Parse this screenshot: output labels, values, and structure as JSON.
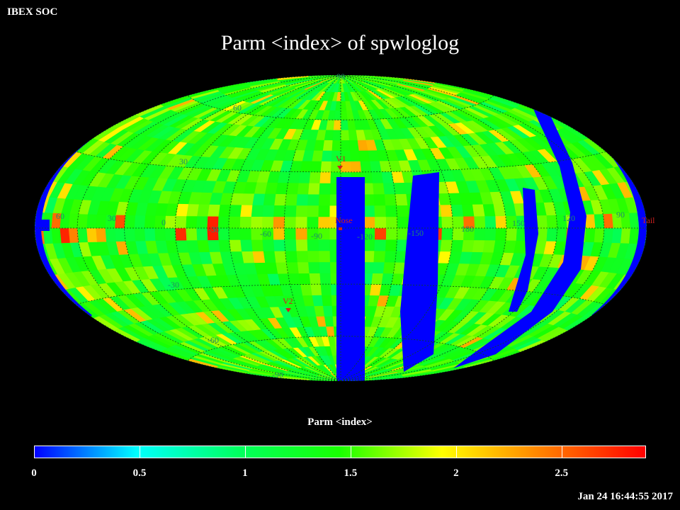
{
  "header": {
    "corner_label": "IBEX SOC",
    "title": "Parm  <index> of spwloglog"
  },
  "map": {
    "projection": "Hammer-Aitoff (ecliptic, all-sky)",
    "gridline_color": "#0a4a18",
    "lon_labels": [
      "60",
      "30",
      "0",
      "-30",
      "-60",
      "-90",
      "-120",
      "-150",
      "180",
      "150",
      "120",
      "90"
    ],
    "lat_labels": [
      "90",
      "60",
      "30",
      "-30",
      "-60",
      "-90"
    ],
    "markers": [
      {
        "label": "V1",
        "color": "#d21f1f"
      },
      {
        "label": "Nose",
        "color": "#d21f1f"
      },
      {
        "label": "V2",
        "color": "#d21f1f"
      },
      {
        "label": "Tail",
        "color": "#d21f1f"
      }
    ]
  },
  "colorbar": {
    "title": "Parm  <index>",
    "range": [
      0,
      2.9
    ],
    "ticks": [
      "0",
      "0.5",
      "1",
      "1.5",
      "2",
      "2.5"
    ],
    "colormap": [
      "#0000ff",
      "#00ffff",
      "#00ff60",
      "#19ff00",
      "#ffff00",
      "#ff7f00",
      "#ff0000"
    ]
  },
  "footer": {
    "timestamp": "Jan 24 16:44:55 2017"
  }
}
